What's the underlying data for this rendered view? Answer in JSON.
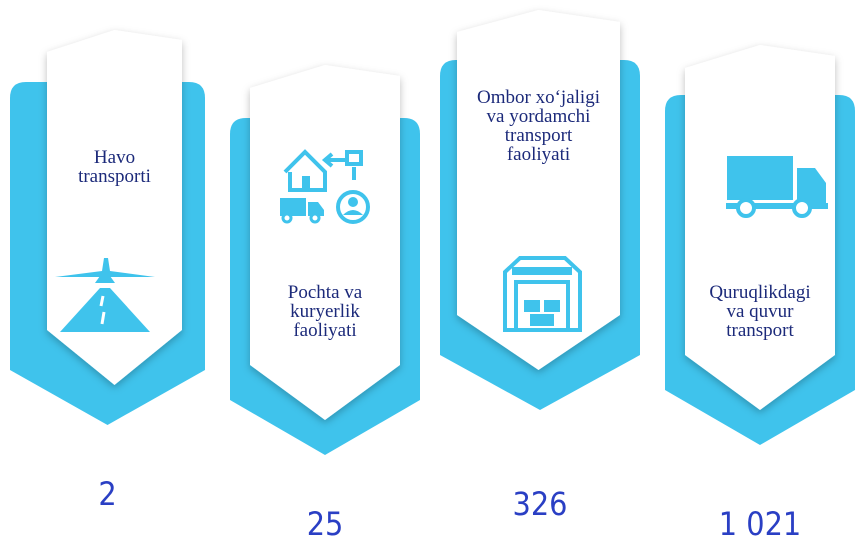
{
  "items": [
    {
      "label_lines": [
        "Havo",
        "transporti"
      ],
      "value": 2
    },
    {
      "label_lines": [
        "Pochta va",
        "kuryerlik",
        "faoliyati"
      ],
      "value": 25
    },
    {
      "label_lines": [
        "Ombor xo‘jaligi",
        "va yordamchi",
        "transport",
        "faoliyati"
      ],
      "value": 326
    },
    {
      "label_lines": [
        "Quruqlikdagi",
        "va quvur",
        "transport"
      ],
      "value": 1021,
      "value_label": "1 021"
    }
  ]
}
